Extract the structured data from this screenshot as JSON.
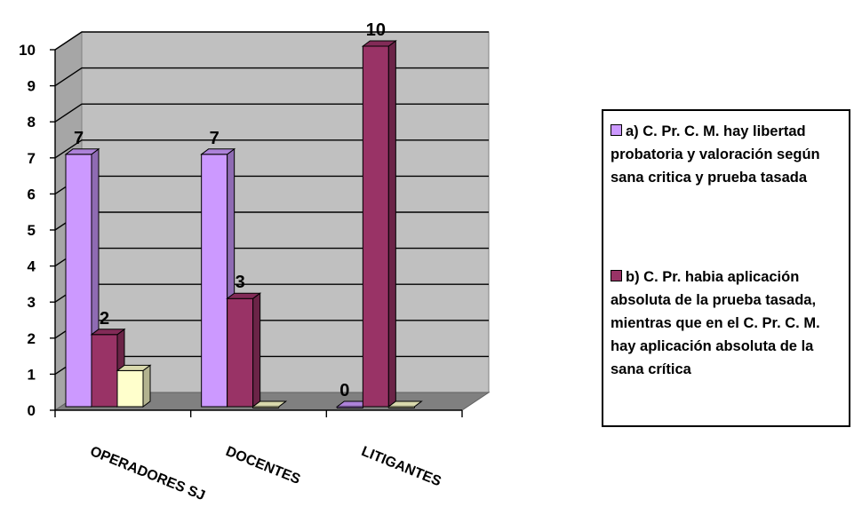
{
  "chart_data": {
    "type": "bar",
    "categories": [
      "OPERADORES SJ",
      "DOCENTES",
      "LITIGANTES"
    ],
    "series": [
      {
        "name": "a) C. Pr. C. M. hay libertad probatoria  y valoración según sana critica y prueba  tasada",
        "values": [
          7,
          7,
          0
        ],
        "color": "#cc99ff",
        "labels": [
          "7",
          "7",
          "0"
        ]
      },
      {
        "name": "b) C. Pr. habia aplicación absoluta de la prueba tasada, mientras que en el C. Pr. C. M. hay aplicación absoluta de la sana crítica",
        "values": [
          2,
          3,
          10
        ],
        "color": "#993366",
        "labels": [
          "2",
          "3",
          "10"
        ]
      },
      {
        "name": "",
        "values": [
          1,
          0,
          0
        ],
        "color": "#ffffcc",
        "labels": [
          "",
          "",
          ""
        ]
      }
    ],
    "yticks": [
      "0",
      "1",
      "2",
      "3",
      "4",
      "5",
      "6",
      "7",
      "8",
      "9",
      "10"
    ],
    "ylim": [
      0,
      10
    ],
    "grid": true,
    "legend_position": "right",
    "style": "3d-clustered-column"
  }
}
